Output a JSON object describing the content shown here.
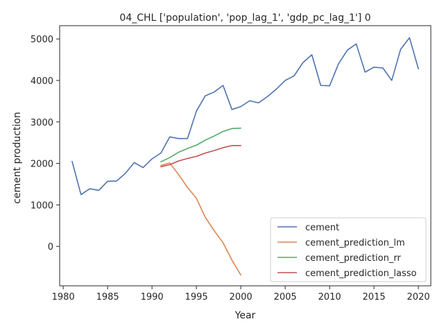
{
  "chart_data": {
    "type": "line",
    "title": "04_CHL ['population', 'pop_lag_1', 'gdp_pc_lag_1'] 0",
    "xlabel": "Year",
    "ylabel": "cement production",
    "xlim": [
      1979.6,
      2021.4
    ],
    "ylim": [
      -950,
      5320
    ],
    "x_ticks": [
      1980,
      1985,
      1990,
      1995,
      2000,
      2005,
      2010,
      2015,
      2020
    ],
    "y_ticks": [
      0,
      1000,
      2000,
      3000,
      4000,
      5000
    ],
    "grid": false,
    "legend_position": "lower-right",
    "series": [
      {
        "name": "cement",
        "color": "#4c72b0",
        "x": [
          1981,
          1982,
          1983,
          1984,
          1985,
          1986,
          1987,
          1988,
          1989,
          1990,
          1991,
          1992,
          1993,
          1994,
          1995,
          1996,
          1997,
          1998,
          1999,
          2000,
          2001,
          2002,
          2003,
          2004,
          2005,
          2006,
          2007,
          2008,
          2009,
          2010,
          2011,
          2012,
          2013,
          2014,
          2015,
          2016,
          2017,
          2018,
          2019,
          2020
        ],
        "values": [
          2050,
          1250,
          1390,
          1350,
          1570,
          1575,
          1760,
          2020,
          1900,
          2110,
          2250,
          2640,
          2600,
          2600,
          3260,
          3630,
          3720,
          3880,
          3300,
          3370,
          3510,
          3460,
          3610,
          3790,
          4000,
          4110,
          4430,
          4620,
          3880,
          3870,
          4400,
          4730,
          4880,
          4200,
          4320,
          4300,
          4000,
          4750,
          5030,
          4280
        ]
      },
      {
        "name": "cement_prediction_lm",
        "color": "#dd8452",
        "x": [
          1991,
          1992,
          1993,
          1994,
          1995,
          1996,
          1997,
          1998,
          1999,
          2000
        ],
        "values": [
          1950,
          2010,
          1730,
          1420,
          1160,
          700,
          380,
          90,
          -330,
          -690
        ]
      },
      {
        "name": "cement_prediction_rr",
        "color": "#55a868",
        "x": [
          1991,
          1992,
          1993,
          1994,
          1995,
          1996,
          1997,
          1998,
          1999,
          2000
        ],
        "values": [
          2040,
          2140,
          2270,
          2360,
          2440,
          2560,
          2660,
          2770,
          2840,
          2850
        ]
      },
      {
        "name": "cement_prediction_lasso",
        "color": "#c44e52",
        "x": [
          1991,
          1992,
          1993,
          1994,
          1995,
          1996,
          1997,
          1998,
          1999,
          2000
        ],
        "values": [
          1920,
          1970,
          2060,
          2120,
          2170,
          2250,
          2310,
          2380,
          2430,
          2430
        ]
      }
    ]
  }
}
